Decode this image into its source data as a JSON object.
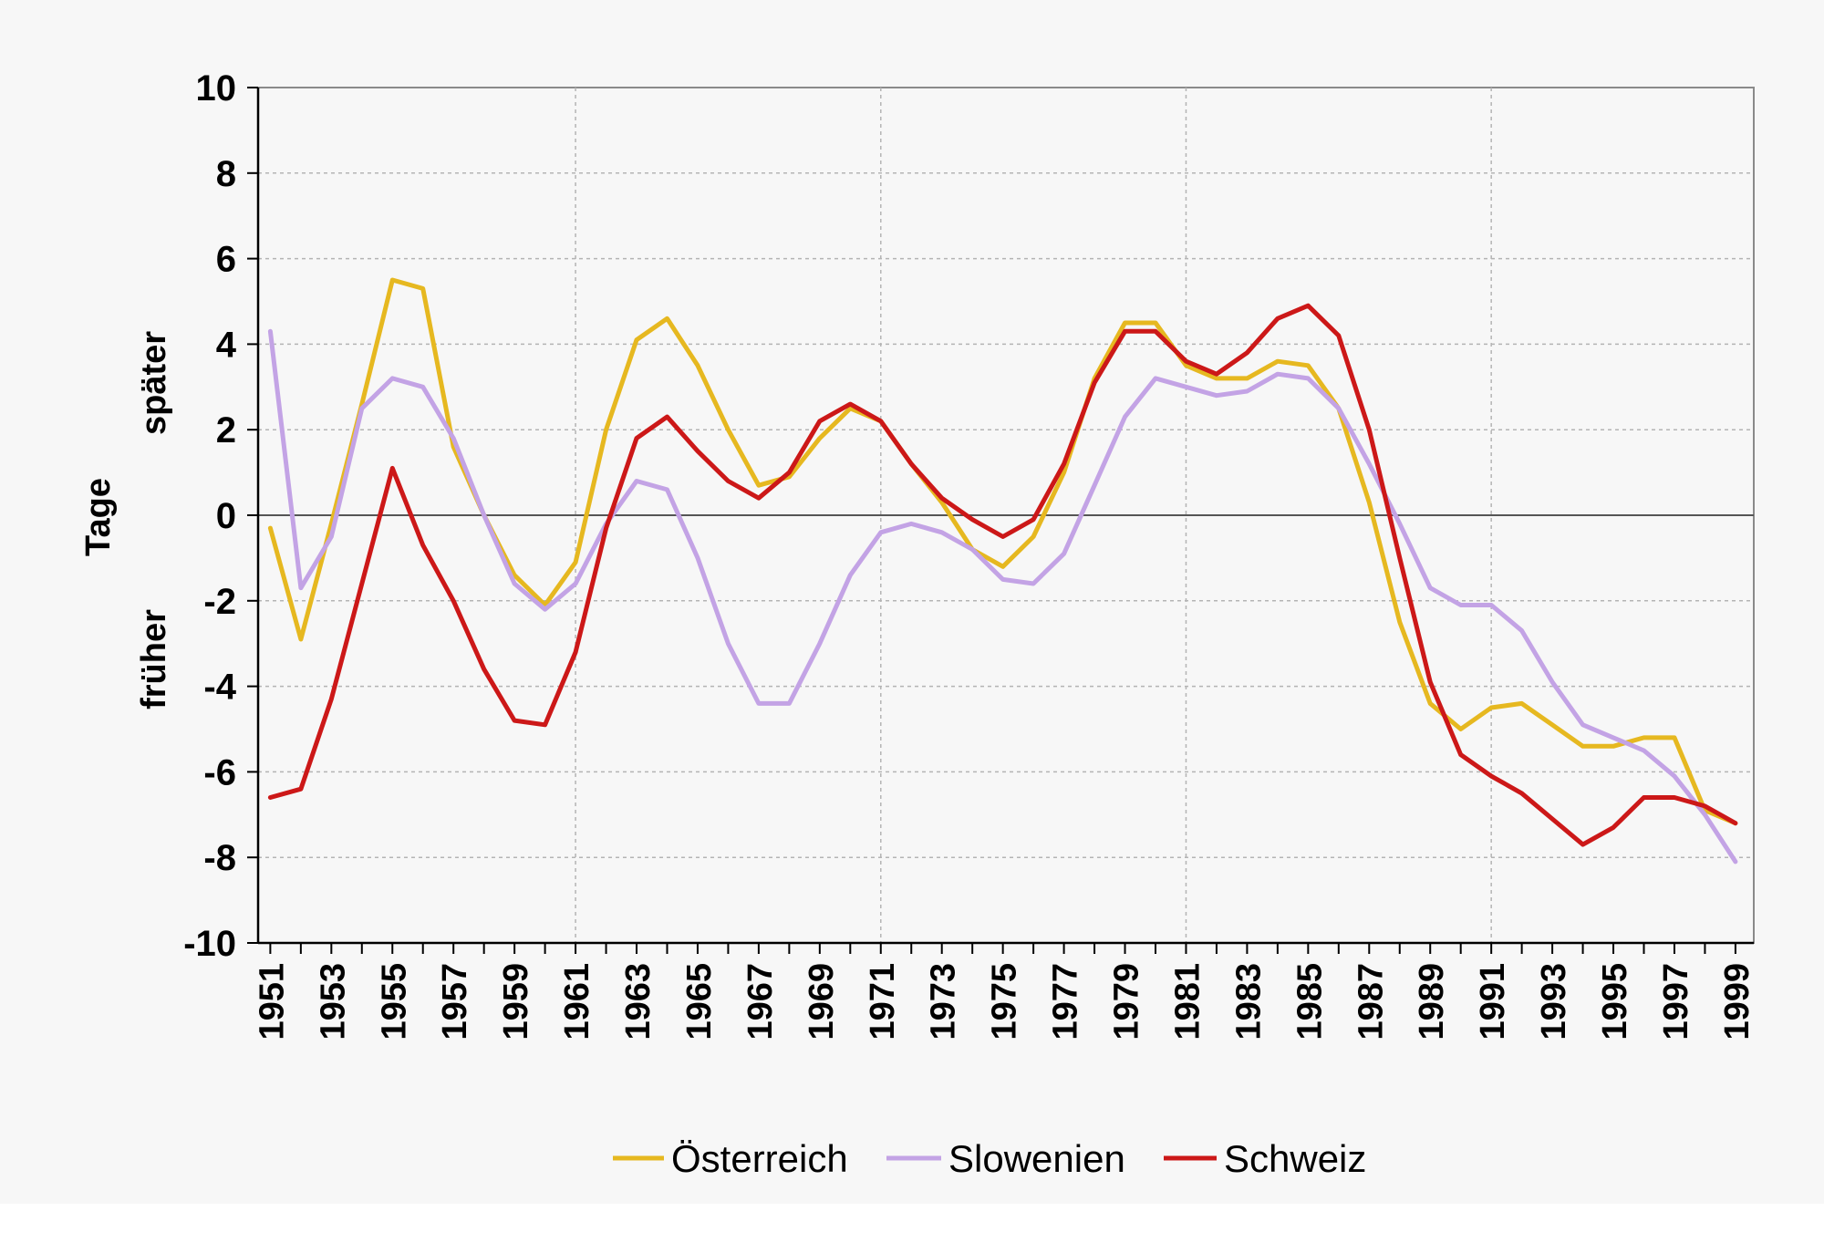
{
  "chart_data": {
    "type": "line",
    "xlabel": "",
    "ylabel": "Tage",
    "ylabel_upper": "später",
    "ylabel_lower": "früher",
    "ylim": [
      -10,
      10
    ],
    "yticks": [
      10,
      8,
      6,
      4,
      2,
      0,
      -2,
      -4,
      -6,
      -8,
      -10
    ],
    "ytick_labels": [
      "10",
      "8",
      "6",
      "4",
      "2",
      "0",
      "-2",
      "-4",
      "-6",
      "-8",
      "-10"
    ],
    "xlim": [
      1950.6,
      1999.6
    ],
    "xticks": [
      1951,
      1953,
      1955,
      1957,
      1959,
      1961,
      1963,
      1965,
      1967,
      1969,
      1971,
      1973,
      1975,
      1977,
      1979,
      1981,
      1983,
      1985,
      1987,
      1989,
      1991,
      1993,
      1995,
      1997,
      1999
    ],
    "xtick_labels": [
      "1951",
      "1953",
      "1955",
      "1957",
      "1959",
      "1961",
      "1963",
      "1965",
      "1967",
      "1969",
      "1971",
      "1973",
      "1975",
      "1977",
      "1979",
      "1981",
      "1983",
      "1985",
      "1987",
      "1989",
      "1991",
      "1993",
      "1995",
      "1997",
      "1999"
    ],
    "grid": true,
    "legend_position": "bottom",
    "x": [
      1951,
      1952,
      1953,
      1954,
      1955,
      1956,
      1957,
      1958,
      1959,
      1960,
      1961,
      1962,
      1963,
      1964,
      1965,
      1966,
      1967,
      1968,
      1969,
      1970,
      1971,
      1972,
      1973,
      1974,
      1975,
      1976,
      1977,
      1978,
      1979,
      1980,
      1981,
      1982,
      1983,
      1984,
      1985,
      1986,
      1987,
      1988,
      1989,
      1990,
      1991,
      1992,
      1993,
      1994,
      1995,
      1996,
      1997,
      1998,
      1999
    ],
    "series": [
      {
        "name": "Österreich",
        "color": "#e6b820",
        "values": [
          -0.3,
          -2.9,
          -0.2,
          2.6,
          5.5,
          5.3,
          1.6,
          0.0,
          -1.4,
          -2.1,
          -1.1,
          2.0,
          4.1,
          4.6,
          3.5,
          2.0,
          0.7,
          0.9,
          1.8,
          2.5,
          2.2,
          1.2,
          0.3,
          -0.8,
          -1.2,
          -0.5,
          1.0,
          3.2,
          4.5,
          4.5,
          3.5,
          3.2,
          3.2,
          3.6,
          3.5,
          2.5,
          0.3,
          -2.5,
          -4.4,
          -5.0,
          -4.5,
          -4.4,
          -4.9,
          -5.4,
          -5.4,
          -5.2,
          -5.2,
          -6.9,
          -7.2
        ]
      },
      {
        "name": "Slowenien",
        "color": "#c3a3e5",
        "values": [
          4.3,
          -1.7,
          -0.5,
          2.5,
          3.2,
          3.0,
          1.8,
          0.0,
          -1.6,
          -2.2,
          -1.6,
          -0.2,
          0.8,
          0.6,
          -1.0,
          -3.0,
          -4.4,
          -4.4,
          -3.0,
          -1.4,
          -0.4,
          -0.2,
          -0.4,
          -0.8,
          -1.5,
          -1.6,
          -0.9,
          0.7,
          2.3,
          3.2,
          3.0,
          2.8,
          2.9,
          3.3,
          3.2,
          2.5,
          1.2,
          -0.2,
          -1.7,
          -2.1,
          -2.1,
          -2.7,
          -3.9,
          -4.9,
          -5.2,
          -5.5,
          -6.1,
          -7.0,
          -8.1
        ]
      },
      {
        "name": "Schweiz",
        "color": "#cc1818",
        "values": [
          -6.6,
          -6.4,
          -4.3,
          -1.6,
          1.1,
          -0.7,
          -2.0,
          -3.6,
          -4.8,
          -4.9,
          -3.2,
          -0.3,
          1.8,
          2.3,
          1.5,
          0.8,
          0.4,
          1.0,
          2.2,
          2.6,
          2.2,
          1.2,
          0.4,
          -0.1,
          -0.5,
          -0.1,
          1.2,
          3.1,
          4.3,
          4.3,
          3.6,
          3.3,
          3.8,
          4.6,
          4.9,
          4.2,
          2.0,
          -1.0,
          -3.9,
          -5.6,
          -6.1,
          -6.5,
          -7.1,
          -7.7,
          -7.3,
          -6.6,
          -6.6,
          -6.8,
          -7.2
        ]
      }
    ]
  }
}
